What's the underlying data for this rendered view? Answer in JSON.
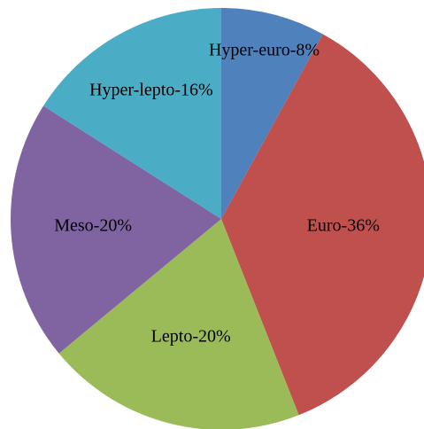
{
  "chart_data": {
    "type": "pie",
    "values": [
      8,
      36,
      20,
      20,
      16
    ],
    "value_labels": [
      "Hyper-euro-8%",
      "Euro-36%",
      "Lepto-20%",
      "Meso-20%",
      "Hyper-lepto-16%"
    ],
    "colors": [
      "#4f81bd",
      "#c0504d",
      "#9bbb59",
      "#8064a2",
      "#4bacc6"
    ]
  }
}
